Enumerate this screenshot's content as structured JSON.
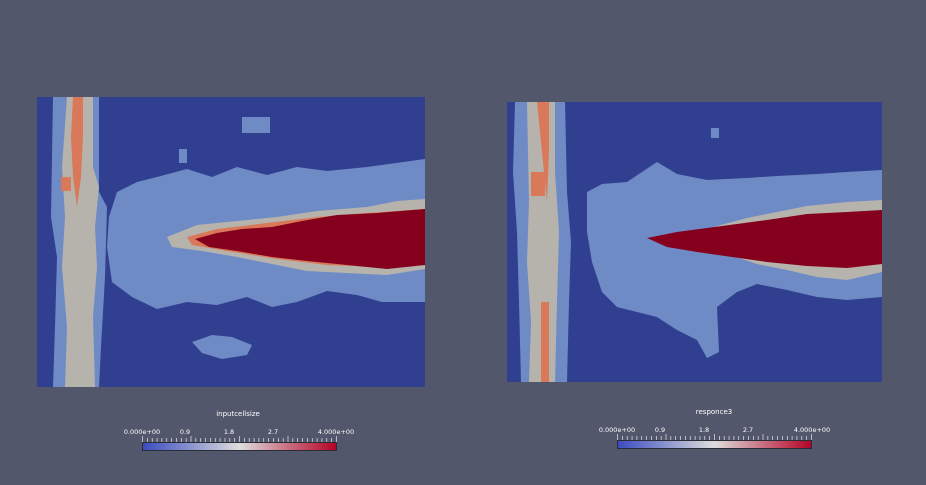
{
  "chart_data": [
    {
      "type": "heatmap",
      "colorbar": {
        "title": "inputcellsize",
        "tick_labels": [
          "0.000e+00",
          "0.9",
          "1.8",
          "2.7",
          "4.000e+00"
        ],
        "tick_values": [
          0,
          0.9,
          1.8,
          2.7,
          4
        ],
        "range": [
          0,
          4
        ],
        "colormap": [
          "#3b4cc0",
          "#dddddd",
          "#b40426"
        ]
      },
      "levels": [
        {
          "value": 0,
          "color": "#313f90"
        },
        {
          "value": 1,
          "color": "#6f8bc5"
        },
        {
          "value": 2,
          "color": "#b6b3ad"
        },
        {
          "value": 3,
          "color": "#d9795a"
        },
        {
          "value": 4,
          "color": "#85001c"
        }
      ]
    },
    {
      "type": "heatmap",
      "colorbar": {
        "title": "responce3",
        "tick_labels": [
          "0.000e+00",
          "0.9",
          "1.8",
          "2.7",
          "4.000e+00"
        ],
        "tick_values": [
          0,
          0.9,
          1.8,
          2.7,
          4
        ],
        "range": [
          0,
          4
        ],
        "colormap": [
          "#3b4cc0",
          "#dddddd",
          "#b40426"
        ]
      },
      "levels": [
        {
          "value": 0,
          "color": "#313f90"
        },
        {
          "value": 1,
          "color": "#6f8bc5"
        },
        {
          "value": 2,
          "color": "#b6b3ad"
        },
        {
          "value": 3,
          "color": "#d9795a"
        },
        {
          "value": 4,
          "color": "#85001c"
        }
      ]
    }
  ]
}
